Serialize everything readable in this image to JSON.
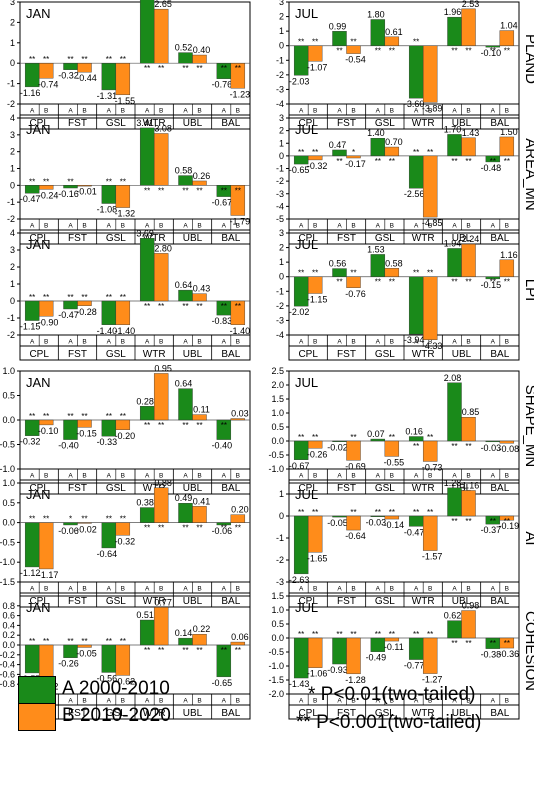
{
  "colors": {
    "A": "#1a8a1a",
    "B": "#ff8c1a"
  },
  "legend": {
    "A": "A 2000-2010",
    "B": "B 2010-2020"
  },
  "notes": [
    "* P<0.01(two-tailed)",
    "** P<0.001(two-tailed)"
  ],
  "chart_data": [
    {
      "type": "bar",
      "metric": "PLAND",
      "month": "JAN",
      "categories": [
        "CPL",
        "FST",
        "GSL",
        "WTR",
        "UBL",
        "BAL"
      ],
      "series": [
        {
          "name": "A",
          "values": [
            -1.16,
            -0.32,
            -1.31,
            3.24,
            0.52,
            -0.76
          ],
          "sig_top": [
            "**",
            "**",
            "**",
            "",
            "",
            ""
          ],
          "sig_bottom": [
            "",
            "",
            "",
            "**",
            "**",
            "**"
          ]
        },
        {
          "name": "B",
          "values": [
            -0.74,
            -0.44,
            -1.55,
            2.65,
            0.4,
            -1.23
          ],
          "sig_top": [
            "**",
            "**",
            "**",
            "",
            "",
            ""
          ],
          "sig_bottom": [
            "",
            "",
            "",
            "**",
            "**",
            "**"
          ]
        }
      ],
      "ylim": [
        -2,
        3
      ],
      "yticks": [
        -2,
        -1,
        0,
        1,
        2,
        3
      ],
      "ytick_labels": [
        "-2",
        "-1",
        "0",
        "1",
        "2",
        "3"
      ]
    },
    {
      "type": "bar",
      "metric": "PLAND",
      "month": "JUL",
      "categories": [
        "CPL",
        "FST",
        "GSL",
        "WTR",
        "UBL",
        "BAL"
      ],
      "series": [
        {
          "name": "A",
          "values": [
            -2.03,
            0.99,
            1.8,
            -3.6,
            1.96,
            -0.1
          ],
          "sig_top": [
            "**",
            "",
            "",
            "**",
            "",
            ""
          ],
          "sig_bottom": [
            "",
            "**",
            "**",
            "",
            "**",
            "**"
          ]
        },
        {
          "name": "B",
          "values": [
            -1.07,
            -0.54,
            0.61,
            -3.89,
            2.53,
            1.04
          ],
          "sig_top": [
            "**",
            "**",
            "",
            "",
            " ",
            ""
          ],
          "sig_bottom": [
            "",
            "",
            "**",
            "",
            "**",
            "**"
          ]
        }
      ],
      "ylim": [
        -4,
        3
      ],
      "yticks": [
        -4,
        -3,
        -2,
        -1,
        0,
        1,
        2,
        3
      ],
      "ytick_labels": [
        "-4",
        "-3",
        "-2",
        "-1",
        "0",
        "1",
        "2",
        "3"
      ]
    },
    {
      "type": "bar",
      "metric": "AREA_MN",
      "month": "JAN",
      "categories": [
        "CPL",
        "FST",
        "GSL",
        "WTR",
        "UBL",
        "BAL"
      ],
      "series": [
        {
          "name": "A",
          "values": [
            -0.47,
            -0.16,
            -1.08,
            3.41,
            0.58,
            -0.67
          ],
          "sig_top": [
            "**",
            "**",
            "**",
            "",
            "",
            ""
          ],
          "sig_bottom": [
            "",
            "",
            "",
            "**",
            "**",
            "**"
          ]
        },
        {
          "name": "B",
          "values": [
            -0.24,
            -0.01,
            -1.32,
            3.08,
            0.26,
            -1.79
          ],
          "sig_top": [
            "**",
            "",
            "**",
            "",
            "",
            ""
          ],
          "sig_bottom": [
            "",
            "",
            "",
            "**",
            "**",
            "**"
          ]
        }
      ],
      "ylim": [
        -2,
        4
      ],
      "yticks": [
        -2,
        -1,
        0,
        1,
        2,
        3,
        4
      ],
      "ytick_labels": [
        "-2",
        "-1",
        "0",
        "1",
        "2",
        "3",
        "4"
      ]
    },
    {
      "type": "bar",
      "metric": "AREA_MN",
      "month": "JUL",
      "categories": [
        "CPL",
        "FST",
        "GSL",
        "WTR",
        "UBL",
        "BAL"
      ],
      "series": [
        {
          "name": "A",
          "values": [
            -0.65,
            0.47,
            1.4,
            -2.56,
            1.7,
            -0.48
          ],
          "sig_top": [
            "**",
            "",
            "",
            "**",
            "",
            ""
          ],
          "sig_bottom": [
            "",
            "**",
            "**",
            "",
            "**",
            "**"
          ]
        },
        {
          "name": "B",
          "values": [
            -0.32,
            -0.17,
            0.7,
            -4.85,
            1.43,
            1.5
          ],
          "sig_top": [
            "**",
            "*",
            "",
            "**",
            "",
            ""
          ],
          "sig_bottom": [
            "",
            "",
            "**",
            "",
            "**",
            "**"
          ]
        }
      ],
      "ylim": [
        -5,
        3
      ],
      "yticks": [
        -5,
        -4,
        -3,
        -2,
        -1,
        0,
        1,
        2,
        3
      ],
      "ytick_labels": [
        "-5",
        "-4",
        "-3",
        "-2",
        "-1",
        "0",
        "1",
        "2",
        "3"
      ]
    },
    {
      "type": "bar",
      "metric": "LPI",
      "month": "JAN",
      "categories": [
        "CPL",
        "FST",
        "GSL",
        "WTR",
        "UBL",
        "BAL"
      ],
      "series": [
        {
          "name": "A",
          "values": [
            -1.15,
            -0.47,
            -1.4,
            3.69,
            0.64,
            -0.83
          ],
          "sig_top": [
            "**",
            "**",
            "**",
            "",
            "",
            ""
          ],
          "sig_bottom": [
            "",
            "",
            "",
            "**",
            "**",
            "**"
          ]
        },
        {
          "name": "B",
          "values": [
            -0.9,
            -0.28,
            -1.4,
            2.8,
            0.43,
            -1.4
          ],
          "sig_top": [
            "**",
            "**",
            "**",
            "",
            "",
            ""
          ],
          "sig_bottom": [
            "",
            "",
            "",
            "**",
            "**",
            "**"
          ]
        }
      ],
      "ylim": [
        -2,
        4
      ],
      "yticks": [
        -2,
        -1,
        0,
        1,
        2,
        3,
        4
      ],
      "ytick_labels": [
        "-2",
        "-1",
        "0",
        "1",
        "2",
        "3",
        "4"
      ]
    },
    {
      "type": "bar",
      "metric": "LPI",
      "month": "JUL",
      "categories": [
        "CPL",
        "FST",
        "GSL",
        "WTR",
        "UBL",
        "BAL"
      ],
      "series": [
        {
          "name": "A",
          "values": [
            -2.02,
            0.56,
            1.53,
            -3.94,
            1.94,
            -0.15
          ],
          "sig_top": [
            "**",
            "",
            "",
            "**",
            "",
            ""
          ],
          "sig_bottom": [
            "",
            "**",
            "**",
            "",
            "**",
            "**"
          ]
        },
        {
          "name": "B",
          "values": [
            -1.15,
            -0.76,
            0.58,
            -4.33,
            2.24,
            1.16
          ],
          "sig_top": [
            "**",
            "**",
            "",
            "**",
            "",
            ""
          ],
          "sig_bottom": [
            "",
            "",
            "**",
            "",
            "**",
            "**"
          ]
        }
      ],
      "ylim": [
        -4,
        3
      ],
      "yticks": [
        -4,
        -3,
        -2,
        -1,
        0,
        1,
        2,
        3
      ],
      "ytick_labels": [
        "-4",
        "-3",
        "-2",
        "-1",
        "0",
        "1",
        "2",
        "3"
      ]
    },
    {
      "type": "bar",
      "metric": "SHAPE_MN",
      "month": "JAN",
      "categories": [
        "CPL",
        "FST",
        "GSL",
        "WTR",
        "UBL",
        "BAL"
      ],
      "series": [
        {
          "name": "A",
          "values": [
            -0.32,
            -0.4,
            -0.33,
            0.28,
            0.64,
            -0.4
          ],
          "sig_top": [
            "**",
            "**",
            "**",
            "",
            "",
            ""
          ],
          "sig_bottom": [
            "",
            "",
            "",
            "**",
            "**",
            "**"
          ]
        },
        {
          "name": "B",
          "values": [
            -0.1,
            -0.15,
            -0.2,
            0.95,
            0.11,
            0.03
          ],
          "sig_top": [
            "**",
            "**",
            "**",
            "",
            "",
            ""
          ],
          "sig_bottom": [
            "",
            "",
            "",
            "**",
            "**",
            ""
          ]
        }
      ],
      "ylim": [
        -1,
        1
      ],
      "yticks": [
        -1,
        -0.5,
        0,
        0.5,
        1
      ],
      "ytick_labels": [
        "-1.0",
        "-0.5",
        "0.0",
        "0.5",
        "1.0"
      ]
    },
    {
      "type": "bar",
      "metric": "SHAPE_MN",
      "month": "JUL",
      "categories": [
        "CPL",
        "FST",
        "GSL",
        "WTR",
        "UBL",
        "BAL"
      ],
      "series": [
        {
          "name": "A",
          "values": [
            -0.67,
            -0.02,
            0.07,
            0.16,
            2.08,
            -0.03
          ],
          "sig_top": [
            "**",
            "",
            "",
            "",
            "",
            " "
          ],
          "sig_bottom": [
            "",
            "",
            "",
            "**",
            "**",
            ""
          ]
        },
        {
          "name": "B",
          "values": [
            -0.26,
            -0.69,
            -0.55,
            -0.73,
            0.85,
            -0.08
          ],
          "sig_top": [
            "**",
            "**",
            "**",
            "**",
            "",
            ""
          ],
          "sig_bottom": [
            "",
            "",
            "",
            "",
            "**",
            ""
          ]
        }
      ],
      "ylim": [
        -1,
        2.5
      ],
      "yticks": [
        -1,
        -0.5,
        0,
        0.5,
        1,
        1.5,
        2,
        2.5
      ],
      "ytick_labels": [
        "-1.0",
        "-0.5",
        "0.0",
        "0.5",
        "1.0",
        "1.5",
        "2.0",
        "2.5"
      ]
    },
    {
      "type": "bar",
      "metric": "AI",
      "month": "JAN",
      "categories": [
        "CPL",
        "FST",
        "GSL",
        "WTR",
        "UBL",
        "BAL"
      ],
      "series": [
        {
          "name": "A",
          "values": [
            -1.12,
            -0.06,
            -0.64,
            0.38,
            0.49,
            -0.06
          ],
          "sig_top": [
            "**",
            "*",
            "**",
            "",
            "",
            ""
          ],
          "sig_bottom": [
            "",
            "",
            "",
            "**",
            "**",
            "**"
          ]
        },
        {
          "name": "B",
          "values": [
            -1.17,
            -0.02,
            -0.32,
            0.88,
            0.41,
            0.2
          ],
          "sig_top": [
            "**",
            "**",
            "**",
            "",
            "",
            ""
          ],
          "sig_bottom": [
            "",
            "",
            "",
            "**",
            "**",
            "**"
          ]
        }
      ],
      "ylim": [
        -1.5,
        1
      ],
      "yticks": [
        -1.5,
        -1,
        -0.5,
        0,
        0.5,
        1
      ],
      "ytick_labels": [
        "-1.5",
        "-1.0",
        "-0.5",
        "0.0",
        "0.5",
        "1.0"
      ]
    },
    {
      "type": "bar",
      "metric": "AI",
      "month": "JUL",
      "categories": [
        "CPL",
        "FST",
        "GSL",
        "WTR",
        "UBL",
        "BAL"
      ],
      "series": [
        {
          "name": "A",
          "values": [
            -2.63,
            -0.05,
            -0.03,
            -0.47,
            1.28,
            -0.37
          ],
          "sig_top": [
            "**",
            "",
            "**",
            "**",
            "",
            ""
          ],
          "sig_bottom": [
            "",
            "",
            "",
            "",
            "**",
            "**"
          ]
        },
        {
          "name": "B",
          "values": [
            -1.65,
            -0.64,
            -0.14,
            -1.57,
            1.16,
            -0.19
          ],
          "sig_top": [
            "**",
            "**",
            "**",
            "**",
            "",
            ""
          ],
          "sig_bottom": [
            "",
            "",
            "",
            "",
            "**",
            "**"
          ]
        }
      ],
      "ylim": [
        -3,
        1.5
      ],
      "yticks": [
        -3,
        -2,
        -1,
        0,
        1
      ],
      "ytick_labels": [
        "-3",
        "-2",
        "-1",
        "0",
        "1"
      ]
    },
    {
      "type": "bar",
      "metric": "COHESION",
      "month": "JAN",
      "categories": [
        "CPL",
        "FST",
        "GSL",
        "WTR",
        "UBL",
        "BAL"
      ],
      "series": [
        {
          "name": "A",
          "values": [
            -0.57,
            -0.26,
            -0.56,
            0.51,
            0.14,
            -0.65
          ],
          "sig_top": [
            "**",
            "**",
            "**",
            "",
            "",
            ""
          ],
          "sig_bottom": [
            "",
            "",
            "",
            "**",
            "**",
            "**"
          ]
        },
        {
          "name": "B",
          "values": [
            -0.72,
            -0.05,
            -0.62,
            0.77,
            0.22,
            0.06
          ],
          "sig_top": [
            "**",
            "**",
            "**",
            "",
            "",
            ""
          ],
          "sig_bottom": [
            "",
            "",
            "",
            "**",
            "**",
            "**"
          ]
        }
      ],
      "ylim": [
        -1,
        1
      ],
      "yticks": [
        -0.8,
        -0.6,
        -0.4,
        -0.2,
        0,
        0.2,
        0.4,
        0.6,
        0.8
      ],
      "ytick_labels": [
        "-0.8",
        "-0.6",
        "-0.4",
        "-0.2",
        "0.0",
        "0.2",
        "0.4",
        "0.6",
        "0.8"
      ]
    },
    {
      "type": "bar",
      "metric": "COHESION",
      "month": "JUL",
      "categories": [
        "CPL",
        "FST",
        "GSL",
        "WTR",
        "UBL",
        "BAL"
      ],
      "series": [
        {
          "name": "A",
          "values": [
            -1.43,
            -0.93,
            -0.49,
            -0.77,
            0.62,
            -0.38
          ],
          "sig_top": [
            "**",
            "**",
            "**",
            "**",
            "",
            ""
          ],
          "sig_bottom": [
            "",
            "",
            "",
            "",
            "**",
            "**"
          ]
        },
        {
          "name": "B",
          "values": [
            -1.06,
            -1.28,
            -0.11,
            -1.27,
            0.98,
            -0.36
          ],
          "sig_top": [
            "**",
            "**",
            "**",
            "**",
            "",
            ""
          ],
          "sig_bottom": [
            "",
            "",
            "",
            "",
            "**",
            "**"
          ]
        }
      ],
      "ylim": [
        -2,
        1.5
      ],
      "yticks": [
        -2,
        -1.5,
        -1,
        -0.5,
        0,
        0.5,
        1,
        1.5
      ],
      "ytick_labels": [
        "-2.0",
        "-1.5",
        "-1.0",
        "-0.5",
        "0.0",
        "0.5",
        "1.0",
        "1.5"
      ]
    }
  ]
}
